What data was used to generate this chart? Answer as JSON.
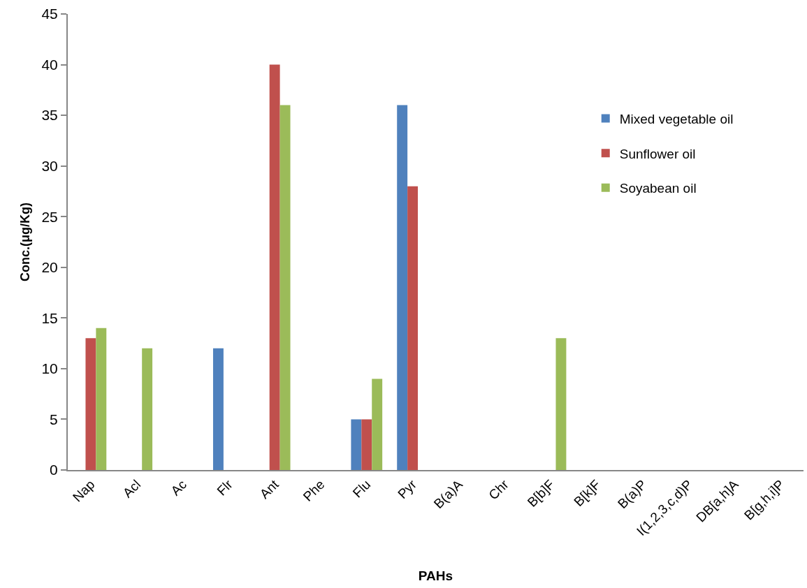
{
  "chart_data": {
    "type": "bar",
    "xlabel": "PAHs",
    "ylabel": "Conc.(μg/Kg)",
    "categories": [
      "Nap",
      "Acl",
      "Ac",
      "Flr",
      "Ant",
      "Phe",
      "Flu",
      "Pyr",
      "B(a)A",
      "Chr",
      "B[b]F",
      "B[k]F",
      "B(a)P",
      "I(1,2,3,c,d)P",
      "DB[a,h]A",
      "B[g,h,i]P"
    ],
    "series": [
      {
        "name": "Mixed vegetable oil",
        "color": "#4f81bd",
        "values": [
          0,
          0,
          0,
          12,
          0,
          0,
          5,
          36,
          0,
          0,
          0,
          0,
          0,
          0,
          0,
          0
        ]
      },
      {
        "name": "Sunflower oil",
        "color": "#c0504d",
        "values": [
          13,
          0,
          0,
          0,
          40,
          0,
          5,
          28,
          0,
          0,
          0,
          0,
          0,
          0,
          0,
          0
        ]
      },
      {
        "name": "Soyabean oil",
        "color": "#9bbb59",
        "values": [
          14,
          12,
          0,
          0,
          36,
          0,
          9,
          0,
          0,
          0,
          13,
          0,
          0,
          0,
          0,
          0
        ]
      }
    ],
    "ylim": [
      0,
      45
    ],
    "yticks": [
      0,
      5,
      10,
      15,
      20,
      25,
      30,
      35,
      40,
      45
    ],
    "legend": "right"
  }
}
